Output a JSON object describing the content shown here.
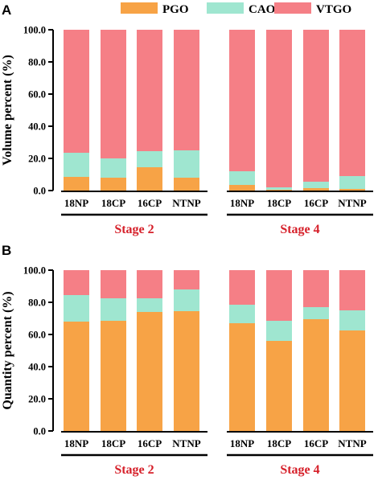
{
  "colors": {
    "pgo": "#F7A346",
    "cao": "#9FE6D0",
    "vtgo": "#F57F86",
    "stage_text": "#D6202A",
    "axis": "#000000"
  },
  "legend": [
    {
      "key": "pgo",
      "label": "PGO"
    },
    {
      "key": "cao",
      "label": "CAO"
    },
    {
      "key": "vtgo",
      "label": "VTGO"
    }
  ],
  "chart_data": [
    {
      "panel": "A",
      "type": "bar",
      "stacked": true,
      "ylabel": "Volume percent (%)",
      "ylim": [
        0,
        100
      ],
      "yticks": [
        "0.0",
        "20.0",
        "40.0",
        "60.0",
        "80.0",
        "100.0"
      ],
      "groups": [
        {
          "stage": "Stage 2",
          "categories": [
            "18NP",
            "18CP",
            "16CP",
            "NTNP"
          ]
        },
        {
          "stage": "Stage 4",
          "categories": [
            "18NP",
            "18CP",
            "16CP",
            "NTNP"
          ]
        }
      ],
      "series": [
        {
          "name": "PGO",
          "values": [
            8.5,
            8.0,
            14.5,
            8.0,
            3.5,
            0.5,
            1.5,
            1.0
          ]
        },
        {
          "name": "CAO",
          "values": [
            15.0,
            12.0,
            10.0,
            17.0,
            8.5,
            1.5,
            4.0,
            8.0
          ]
        },
        {
          "name": "VTGO",
          "values": [
            76.5,
            80.0,
            75.5,
            75.0,
            88.0,
            98.0,
            94.5,
            91.0
          ]
        }
      ]
    },
    {
      "panel": "B",
      "type": "bar",
      "stacked": true,
      "ylabel": "Quantity percent (%)",
      "ylim": [
        0,
        100
      ],
      "yticks": [
        "0.0",
        "20.0",
        "40.0",
        "60.0",
        "80.0",
        "100.0"
      ],
      "groups": [
        {
          "stage": "Stage 2",
          "categories": [
            "18NP",
            "18CP",
            "16CP",
            "NTNP"
          ]
        },
        {
          "stage": "Stage 4",
          "categories": [
            "18NP",
            "18CP",
            "16CP",
            "NTNP"
          ]
        }
      ],
      "series": [
        {
          "name": "PGO",
          "values": [
            68.0,
            68.5,
            74.0,
            74.5,
            67.0,
            56.0,
            69.5,
            62.5
          ]
        },
        {
          "name": "CAO",
          "values": [
            16.5,
            14.0,
            8.5,
            13.5,
            11.5,
            12.5,
            7.5,
            12.5
          ]
        },
        {
          "name": "VTGO",
          "values": [
            15.5,
            17.5,
            17.5,
            12.0,
            21.5,
            31.5,
            23.0,
            25.0
          ]
        }
      ]
    }
  ]
}
